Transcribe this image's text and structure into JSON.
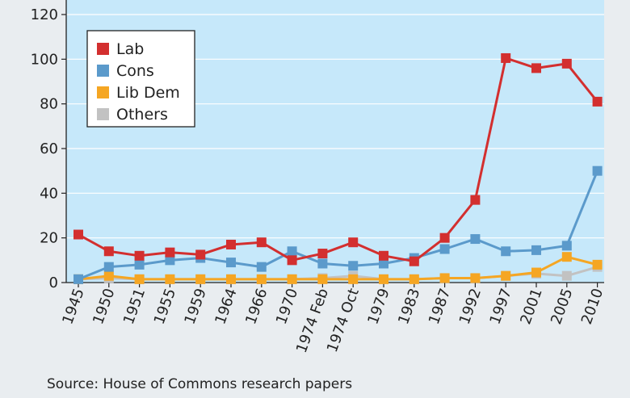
{
  "chart_data": {
    "type": "line",
    "categories": [
      "1945",
      "1950",
      "1951",
      "1955",
      "1959",
      "1964",
      "1966",
      "1970",
      "1974 Feb",
      "1974 Oct",
      "1979",
      "1983",
      "1987",
      "1992",
      "1997",
      "2001",
      "2005",
      "2010"
    ],
    "series": [
      {
        "name": "Lab",
        "color": "#d32f2f",
        "values": [
          21.5,
          14,
          12,
          13.5,
          12.5,
          17,
          18,
          10,
          13,
          18,
          12,
          9.5,
          20,
          37,
          100.5,
          96,
          98,
          81
        ]
      },
      {
        "name": "Cons",
        "color": "#5b9acb",
        "values": [
          1.5,
          7,
          8,
          10,
          11,
          9,
          7,
          14,
          8.5,
          7.5,
          8.5,
          11,
          15,
          19.5,
          14,
          14.5,
          16.5,
          50
        ]
      },
      {
        "name": "Lib Dem",
        "color": "#f5a623",
        "values": [
          1.5,
          3,
          1.5,
          1.5,
          1.5,
          1.5,
          1.5,
          1.5,
          1.5,
          1.5,
          1.5,
          1.5,
          2,
          2,
          3,
          4.5,
          11.5,
          8
        ]
      },
      {
        "name": "Others",
        "color": "#c2c2c2",
        "values": [
          1.5,
          2,
          1.5,
          1.5,
          1.5,
          1.5,
          1.5,
          1.5,
          2,
          3,
          1.5,
          1.5,
          2,
          2,
          3,
          4,
          3,
          7
        ]
      }
    ],
    "yticks": [
      0,
      20,
      40,
      60,
      80,
      100,
      120
    ],
    "ylim": [
      0,
      120
    ],
    "grid": true,
    "legend_position": "top-left",
    "source": "Source: House of Commons research papers"
  },
  "colors": {
    "plot_background": "#c6e8fa",
    "grid": "#ffffff",
    "card_background": "#e9edf0"
  }
}
